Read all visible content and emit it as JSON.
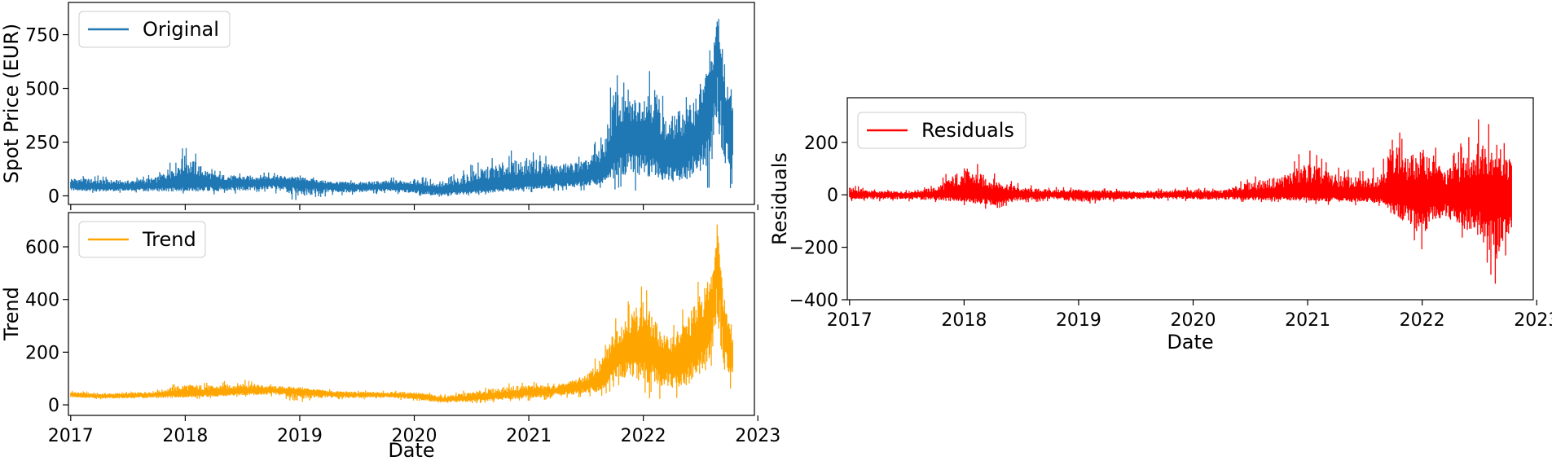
{
  "chart_data": [
    {
      "type": "line",
      "title": "",
      "xlabel": "",
      "ylabel": "Spot Price (EUR)",
      "x_ticks": [
        "2017",
        "2018",
        "2019",
        "2020",
        "2021",
        "2022",
        "2023"
      ],
      "x_tick_values": [
        2017,
        2018,
        2019,
        2020,
        2021,
        2022,
        2023
      ],
      "xlim": [
        2016.98,
        2022.97
      ],
      "y_ticks": [
        "0",
        "250",
        "500",
        "750"
      ],
      "y_tick_values": [
        0,
        250,
        500,
        750
      ],
      "ylim": [
        -40,
        900
      ],
      "legend_position": "upper-left",
      "grid": false,
      "series": [
        {
          "name": "Original",
          "color": "#1f77b4",
          "x": [
            2017.0,
            2017.25,
            2017.5,
            2017.75,
            2018.0,
            2018.25,
            2018.5,
            2018.75,
            2019.0,
            2019.25,
            2019.5,
            2019.75,
            2020.0,
            2020.25,
            2020.5,
            2020.75,
            2021.0,
            2021.25,
            2021.5,
            2021.65,
            2021.75,
            2021.85,
            2022.0,
            2022.1,
            2022.2,
            2022.3,
            2022.4,
            2022.5,
            2022.6,
            2022.65,
            2022.7,
            2022.78
          ],
          "y": [
            48,
            40,
            42,
            45,
            52,
            58,
            55,
            62,
            60,
            45,
            40,
            40,
            38,
            25,
            30,
            45,
            55,
            70,
            85,
            110,
            210,
            260,
            280,
            230,
            180,
            200,
            220,
            280,
            480,
            760,
            420,
            300
          ],
          "upper": [
            100,
            95,
            85,
            105,
            250,
            120,
            110,
            115,
            100,
            80,
            75,
            85,
            95,
            70,
            150,
            200,
            230,
            180,
            200,
            300,
            630,
            520,
            560,
            650,
            420,
            480,
            500,
            640,
            720,
            865,
            640,
            500
          ],
          "lower": [
            15,
            10,
            15,
            10,
            5,
            5,
            10,
            15,
            -30,
            0,
            5,
            10,
            0,
            -20,
            0,
            5,
            15,
            20,
            25,
            30,
            20,
            10,
            20,
            10,
            5,
            10,
            20,
            30,
            10,
            100,
            40,
            30
          ]
        }
      ]
    },
    {
      "type": "line",
      "title": "",
      "xlabel": "Date",
      "ylabel": "Trend",
      "x_ticks": [
        "2017",
        "2018",
        "2019",
        "2020",
        "2021",
        "2022",
        "2023"
      ],
      "x_tick_values": [
        2017,
        2018,
        2019,
        2020,
        2021,
        2022,
        2023
      ],
      "xlim": [
        2016.98,
        2022.97
      ],
      "y_ticks": [
        "0",
        "200",
        "400",
        "600"
      ],
      "y_tick_values": [
        0,
        200,
        400,
        600
      ],
      "ylim": [
        -40,
        730
      ],
      "legend_position": "upper-left",
      "grid": false,
      "series": [
        {
          "name": "Trend",
          "color": "#ffa500",
          "x": [
            2017.0,
            2017.25,
            2017.5,
            2017.75,
            2018.0,
            2018.25,
            2018.5,
            2018.75,
            2019.0,
            2019.25,
            2019.5,
            2019.75,
            2020.0,
            2020.25,
            2020.5,
            2020.75,
            2021.0,
            2021.25,
            2021.5,
            2021.65,
            2021.75,
            2021.85,
            2022.0,
            2022.1,
            2022.2,
            2022.3,
            2022.4,
            2022.5,
            2022.6,
            2022.65,
            2022.7,
            2022.78
          ],
          "y": [
            38,
            32,
            35,
            38,
            42,
            45,
            50,
            55,
            52,
            42,
            38,
            38,
            35,
            20,
            25,
            35,
            45,
            55,
            75,
            95,
            180,
            200,
            230,
            190,
            160,
            170,
            190,
            240,
            380,
            620,
            330,
            200
          ],
          "upper": [
            55,
            50,
            50,
            60,
            95,
            85,
            100,
            80,
            75,
            60,
            55,
            55,
            55,
            40,
            60,
            80,
            90,
            80,
            130,
            220,
            340,
            400,
            470,
            380,
            300,
            330,
            420,
            500,
            560,
            705,
            420,
            300
          ],
          "lower": [
            25,
            20,
            20,
            20,
            20,
            25,
            30,
            30,
            10,
            20,
            20,
            20,
            15,
            0,
            5,
            10,
            15,
            20,
            30,
            30,
            60,
            50,
            30,
            20,
            15,
            20,
            30,
            60,
            30,
            150,
            50,
            40
          ]
        }
      ]
    },
    {
      "type": "line",
      "title": "",
      "xlabel": "Date",
      "ylabel": "Residuals",
      "x_ticks": [
        "2017",
        "2018",
        "2019",
        "2020",
        "2021",
        "2022",
        "2023"
      ],
      "x_tick_values": [
        2017,
        2018,
        2019,
        2020,
        2021,
        2022,
        2023
      ],
      "xlim": [
        2016.98,
        2022.97
      ],
      "y_ticks": [
        "−400",
        "−200",
        "0",
        "200"
      ],
      "y_tick_values": [
        -400,
        -200,
        0,
        200
      ],
      "ylim": [
        -400,
        370
      ],
      "legend_position": "upper-left",
      "grid": false,
      "series": [
        {
          "name": "Residuals",
          "color": "#ff0000",
          "x": [
            2017.0,
            2017.25,
            2017.5,
            2017.75,
            2018.0,
            2018.25,
            2018.5,
            2018.75,
            2019.0,
            2019.25,
            2019.5,
            2019.75,
            2020.0,
            2020.25,
            2020.5,
            2020.75,
            2021.0,
            2021.25,
            2021.5,
            2021.65,
            2021.75,
            2021.85,
            2022.0,
            2022.1,
            2022.2,
            2022.3,
            2022.4,
            2022.5,
            2022.6,
            2022.65,
            2022.7,
            2022.78
          ],
          "y": [
            0,
            0,
            0,
            0,
            0,
            0,
            0,
            0,
            0,
            0,
            0,
            0,
            0,
            0,
            0,
            0,
            0,
            0,
            0,
            0,
            0,
            0,
            0,
            0,
            0,
            0,
            0,
            0,
            0,
            0,
            0,
            0
          ],
          "upper": [
            40,
            20,
            20,
            40,
            150,
            90,
            40,
            30,
            30,
            25,
            20,
            25,
            30,
            25,
            70,
            100,
            180,
            110,
            90,
            130,
            330,
            200,
            250,
            220,
            130,
            180,
            230,
            300,
            290,
            300,
            230,
            200
          ],
          "lower": [
            -25,
            -25,
            -25,
            -30,
            -40,
            -60,
            -30,
            -25,
            -40,
            -30,
            -25,
            -25,
            -25,
            -30,
            -30,
            -30,
            -35,
            -40,
            -40,
            -50,
            -120,
            -160,
            -220,
            -150,
            -130,
            -150,
            -200,
            -240,
            -330,
            -380,
            -260,
            -200
          ]
        }
      ]
    }
  ]
}
